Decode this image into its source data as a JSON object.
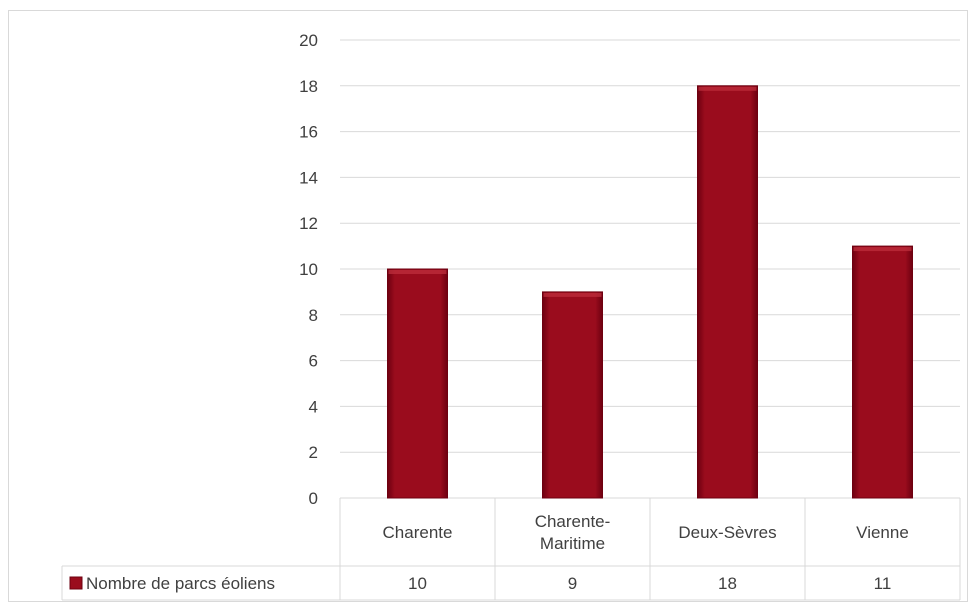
{
  "chart_data": {
    "type": "bar",
    "categories": [
      [
        "Charente"
      ],
      [
        "Charente-",
        "Maritime"
      ],
      [
        "Deux-Sèvres"
      ],
      [
        "Vienne"
      ]
    ],
    "series": [
      {
        "name": "Nombre de parcs éoliens",
        "values": [
          10,
          9,
          18,
          11
        ]
      }
    ],
    "table_values": [
      "10",
      "9",
      "18",
      "11"
    ],
    "ylim": [
      0,
      20
    ],
    "yticks": [
      0,
      2,
      4,
      6,
      8,
      10,
      12,
      14,
      16,
      18,
      20
    ],
    "grid": true,
    "data_table": true,
    "colors": {
      "bar": "#9a0c1d",
      "bar_dark": "#6e0010",
      "grid": "#d9d9d9",
      "text": "#404040"
    }
  }
}
